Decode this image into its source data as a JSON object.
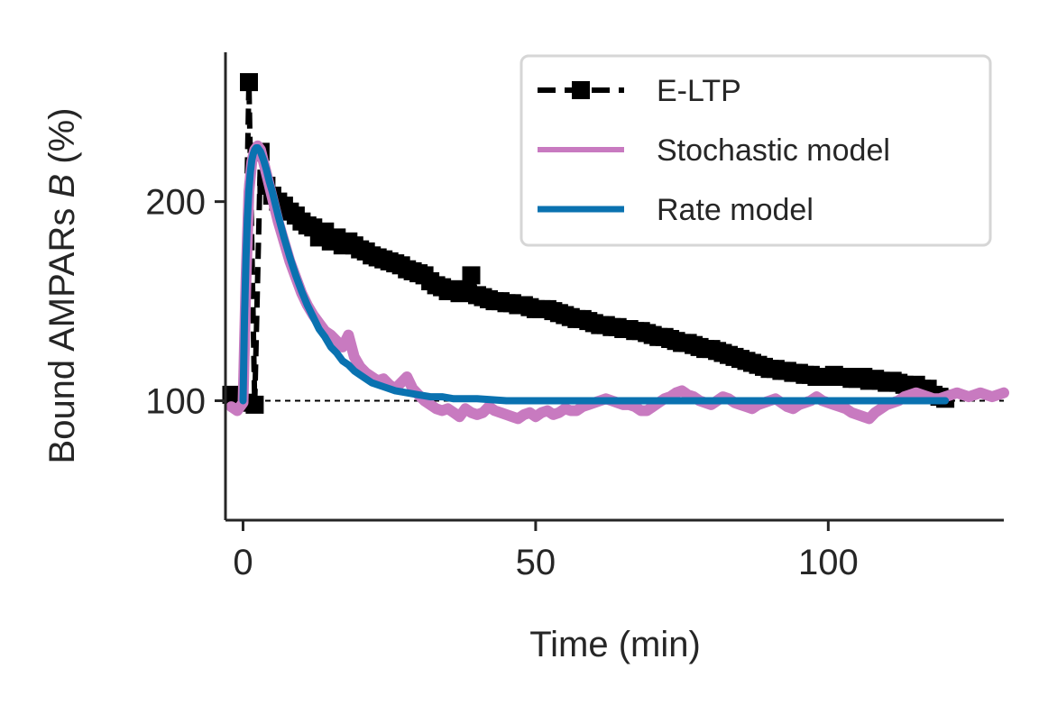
{
  "chart_data": {
    "type": "line",
    "xlabel": "Time (min)",
    "ylabel": {
      "prefix": "Bound AMPARs ",
      "var": "B",
      "suffix": " (%)"
    },
    "xlim": [
      -3,
      130
    ],
    "ylim": [
      40,
      275
    ],
    "xticks": [
      0,
      50,
      100
    ],
    "yticks": [
      100,
      200
    ],
    "reference_line": {
      "y": 100,
      "style": "dashed"
    },
    "grid": false,
    "legend": {
      "placement": "top-right"
    },
    "colors": {
      "eltp": "#000000",
      "stochastic": "#c87ac0",
      "rate": "#0a72b0",
      "axis": "#262626"
    },
    "series": [
      {
        "name": "E-LTP",
        "style": "dashed-square-markers",
        "x": [
          -2,
          0,
          1,
          2,
          3,
          4,
          5,
          6,
          7,
          8,
          9,
          10,
          11,
          12,
          13,
          14,
          15,
          16,
          17,
          18,
          19,
          20,
          21,
          22,
          23,
          24,
          25,
          26,
          27,
          28,
          29,
          30,
          31,
          32,
          33,
          34,
          35,
          36,
          37,
          38,
          39,
          40,
          41,
          42,
          43,
          44,
          45,
          46,
          47,
          48,
          49,
          50,
          51,
          52,
          53,
          54,
          55,
          56,
          57,
          58,
          59,
          60,
          61,
          62,
          63,
          64,
          65,
          66,
          67,
          68,
          69,
          70,
          71,
          72,
          73,
          74,
          75,
          76,
          77,
          78,
          79,
          80,
          81,
          82,
          83,
          84,
          85,
          86,
          87,
          88,
          89,
          90,
          91,
          92,
          93,
          94,
          95,
          96,
          97,
          98,
          99,
          100,
          101,
          102,
          103,
          104,
          105,
          106,
          107,
          108,
          109,
          110,
          111,
          112,
          113,
          114,
          115,
          116,
          117,
          118,
          119,
          120
        ],
        "y": [
          103,
          99,
          260,
          98,
          225,
          208,
          203,
          200,
          198,
          195,
          193,
          190,
          188,
          187,
          182,
          185,
          180,
          182,
          178,
          180,
          178,
          176,
          175,
          173,
          172,
          171,
          170,
          169,
          168,
          166,
          165,
          164,
          163,
          160,
          158,
          157,
          155,
          156,
          154,
          155,
          163,
          153,
          152,
          151,
          150,
          150,
          149,
          149,
          148,
          148,
          147,
          146,
          146,
          146,
          145,
          144,
          143,
          142,
          141,
          141,
          140,
          139,
          138,
          138,
          137,
          137,
          136,
          136,
          135,
          135,
          134,
          133,
          132,
          132,
          131,
          130,
          129,
          129,
          128,
          127,
          126,
          126,
          125,
          124,
          123,
          122,
          121,
          120,
          119,
          118,
          117,
          116,
          116,
          115,
          115,
          114,
          114,
          113,
          113,
          112,
          112,
          112,
          113,
          112,
          112,
          111,
          111,
          112,
          110,
          111,
          110,
          109,
          110,
          109,
          108,
          107,
          108,
          106,
          106,
          103,
          102,
          101
        ]
      },
      {
        "name": "Stochastic model",
        "x": [
          -2,
          -1,
          0,
          0.5,
          1,
          1.5,
          2,
          2.5,
          3,
          3.5,
          4,
          5,
          6,
          7,
          8,
          9,
          10,
          11,
          12,
          13,
          14,
          15,
          16,
          17,
          18,
          19,
          20,
          21,
          22,
          23,
          24,
          25,
          26,
          27,
          28,
          29,
          30,
          31,
          32,
          33,
          34,
          35,
          36,
          37,
          38,
          39,
          40,
          41,
          42,
          43,
          44,
          45,
          46,
          47,
          48,
          49,
          50,
          51,
          52,
          53,
          54,
          55,
          56,
          57,
          58,
          59,
          60,
          61,
          62,
          63,
          64,
          65,
          66,
          67,
          68,
          69,
          70,
          71,
          72,
          73,
          74,
          75,
          76,
          77,
          78,
          79,
          80,
          81,
          82,
          83,
          84,
          85,
          86,
          87,
          88,
          89,
          90,
          91,
          92,
          93,
          94,
          95,
          96,
          97,
          98,
          99,
          100,
          101,
          102,
          103,
          104,
          105,
          106,
          107,
          108,
          109,
          110,
          111,
          112,
          113,
          114,
          115,
          116,
          117,
          118,
          119,
          120,
          121,
          122,
          123,
          124,
          125,
          126,
          127,
          128,
          129,
          130
        ],
        "y": [
          97,
          95,
          99,
          160,
          205,
          220,
          226,
          228,
          226,
          220,
          214,
          202,
          190,
          180,
          170,
          162,
          154,
          148,
          143,
          139,
          135,
          133,
          130,
          127,
          133,
          122,
          117,
          114,
          112,
          110,
          111,
          108,
          106,
          109,
          112,
          106,
          103,
          100,
          98,
          96,
          95,
          96,
          94,
          92,
          96,
          94,
          93,
          94,
          97,
          95,
          94,
          93,
          92,
          91,
          93,
          94,
          92,
          94,
          95,
          93,
          94,
          96,
          95,
          95,
          97,
          98,
          99,
          100,
          101,
          100,
          99,
          98,
          98,
          97,
          95,
          95,
          97,
          99,
          101,
          102,
          104,
          105,
          103,
          102,
          100,
          99,
          98,
          100,
          102,
          101,
          99,
          98,
          97,
          96,
          98,
          99,
          100,
          101,
          99,
          97,
          96,
          98,
          99,
          100,
          102,
          100,
          99,
          98,
          97,
          96,
          94,
          93,
          92,
          91,
          94,
          96,
          98,
          99,
          100,
          102,
          103,
          104,
          103,
          102,
          101,
          101,
          102,
          103,
          104,
          103,
          102,
          103,
          104,
          103,
          102,
          103,
          104
        ]
      },
      {
        "name": "Rate model",
        "x": [
          0,
          0.25,
          0.5,
          0.75,
          1,
          1.25,
          1.5,
          1.75,
          2,
          2.25,
          2.5,
          2.75,
          3,
          3.5,
          4,
          4.5,
          5,
          6,
          7,
          8,
          9,
          10,
          11,
          12,
          13,
          14,
          15,
          16,
          17,
          18,
          19,
          20,
          22,
          24,
          26,
          28,
          30,
          32,
          34,
          36,
          38,
          40,
          45,
          50,
          55,
          60,
          70,
          80,
          90,
          100,
          110,
          120
        ],
        "y": [
          100,
          142,
          171,
          192,
          206,
          215,
          221,
          224,
          226,
          227,
          227,
          226,
          225,
          221,
          216,
          210,
          205,
          193,
          182,
          172,
          163,
          155,
          148,
          142,
          136,
          132,
          127,
          124,
          120,
          118,
          115,
          113,
          109,
          107,
          105,
          104,
          103,
          102,
          102,
          101,
          101,
          101,
          100,
          100,
          100,
          100,
          100,
          100,
          100,
          100,
          100,
          100
        ]
      }
    ]
  }
}
